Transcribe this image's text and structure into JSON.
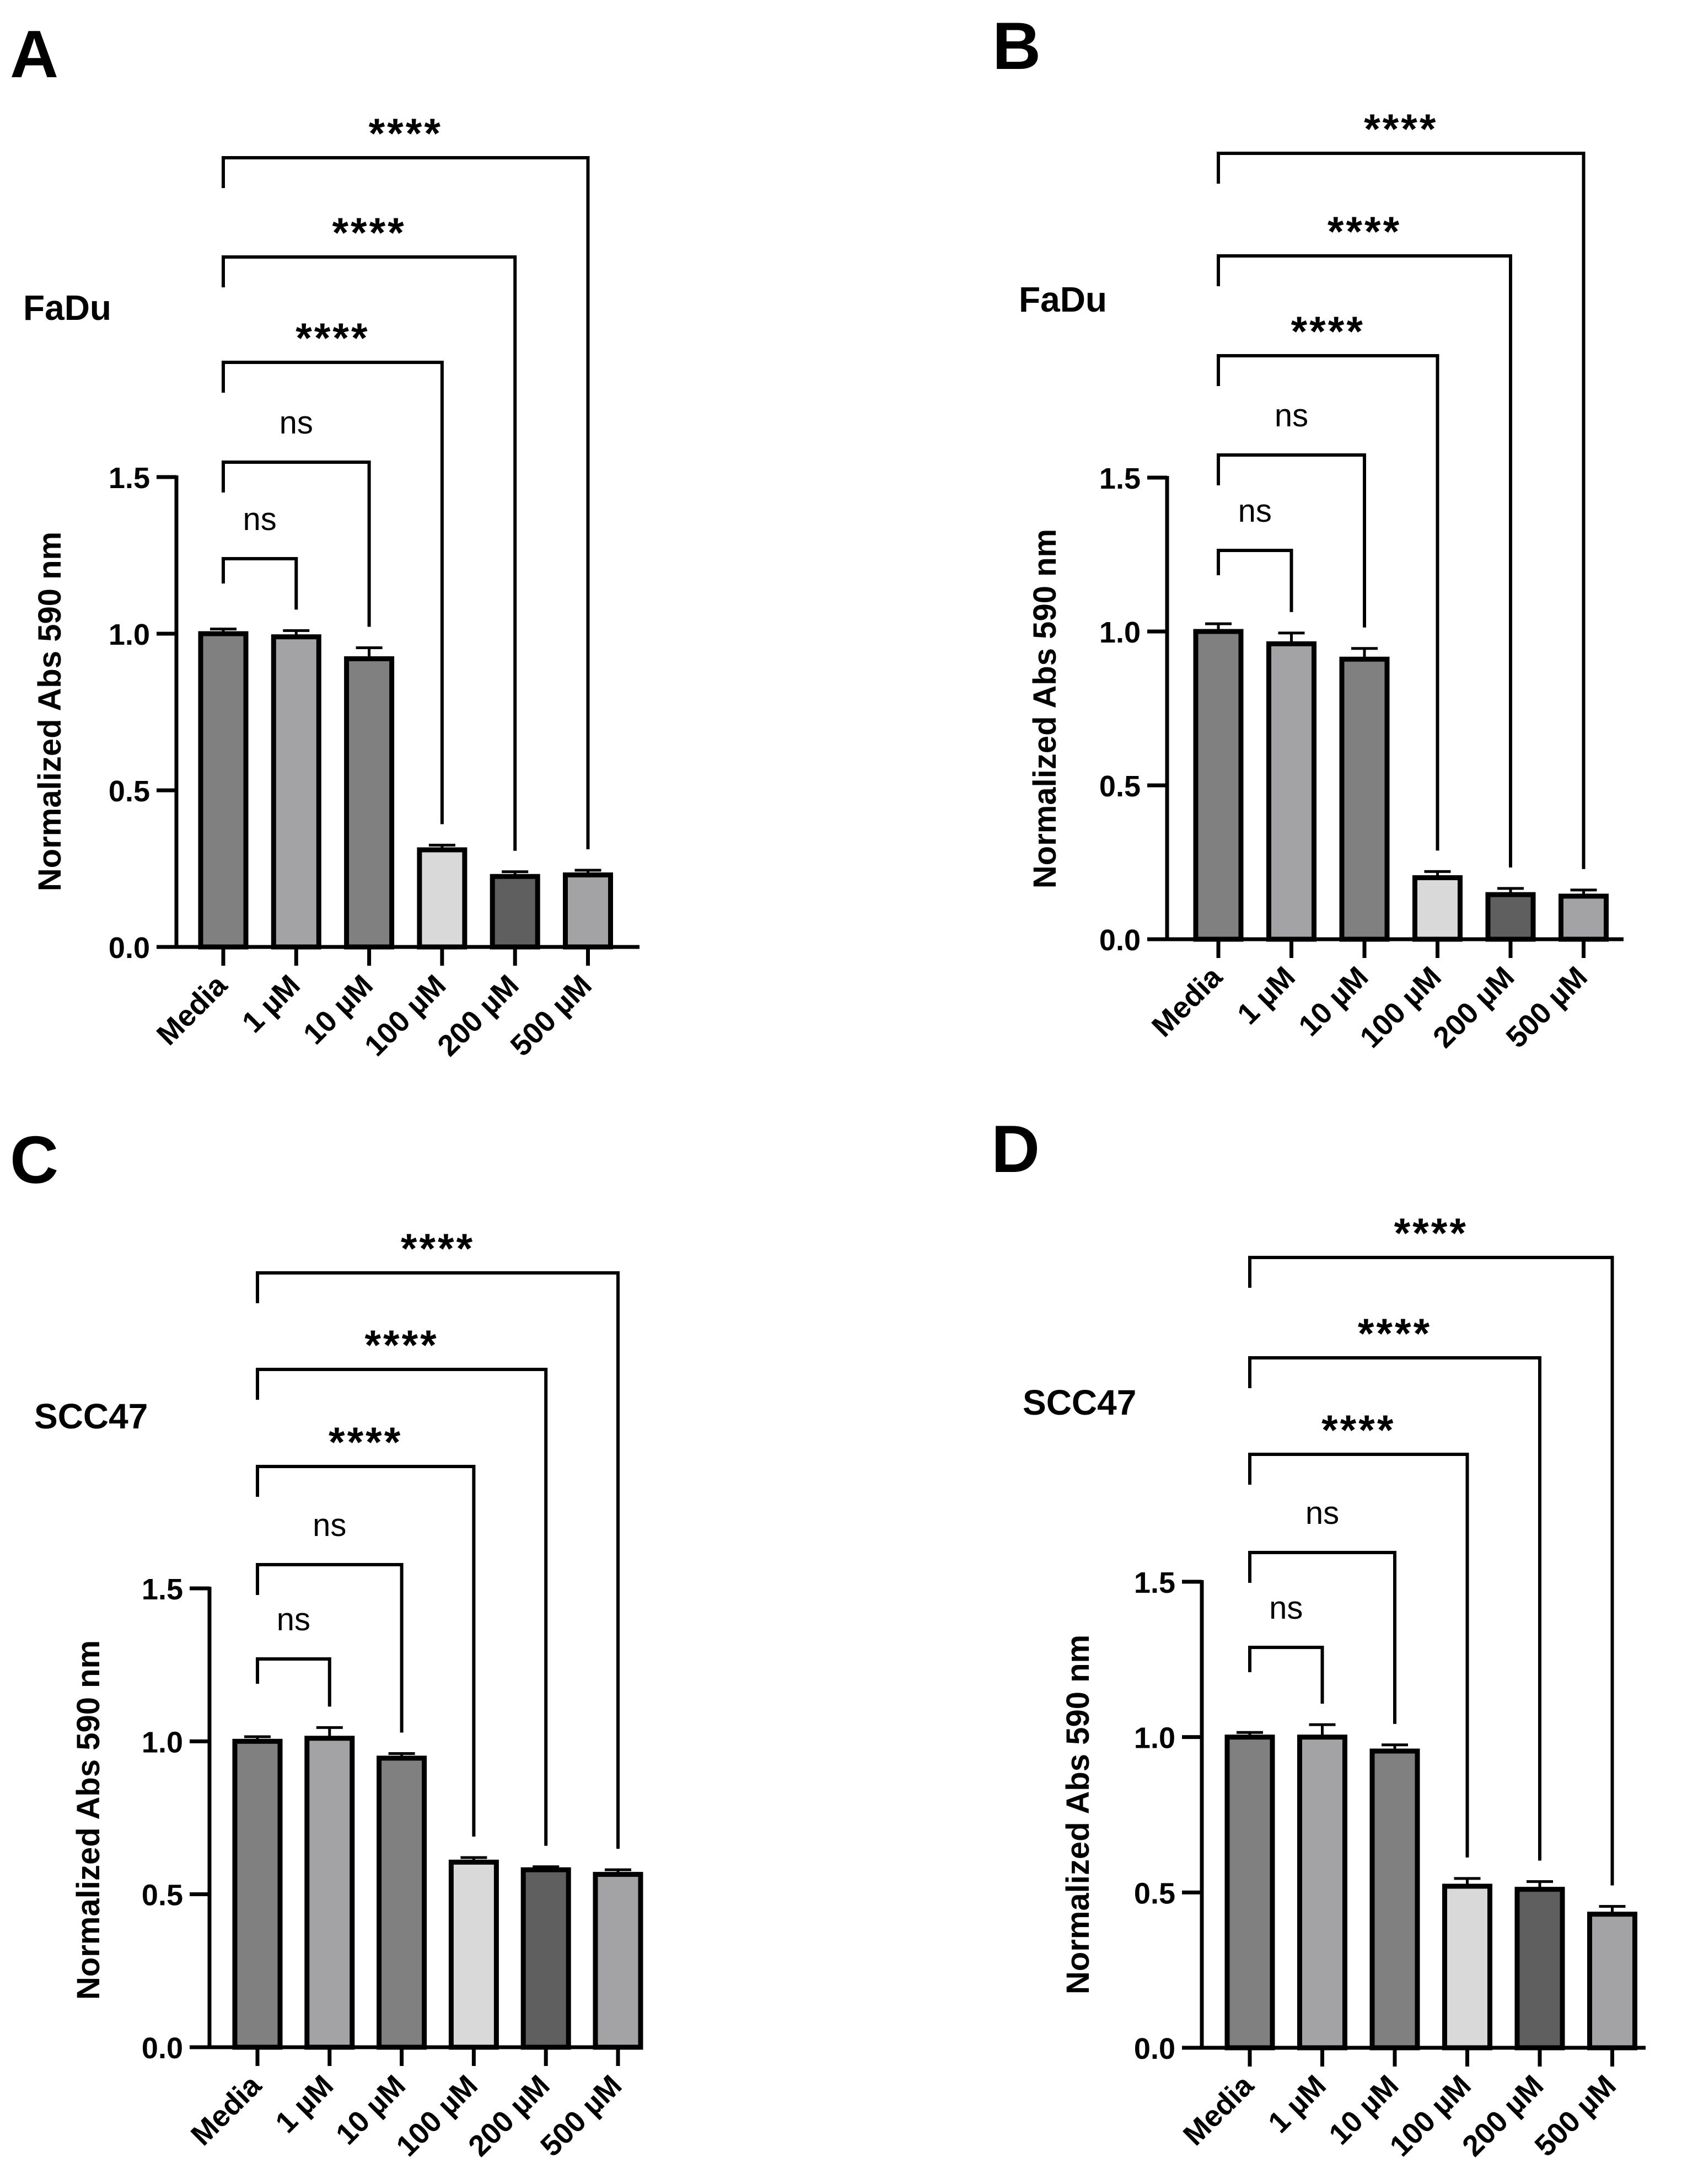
{
  "figure": {
    "colors": {
      "axis": "#000000",
      "bar_edge": "#000000",
      "bar_fills": [
        "#808080",
        "#a3a3a6",
        "#808080",
        "#d9d9d9",
        "#5f5f5f",
        "#a3a3a6"
      ]
    },
    "shared": {
      "categories": [
        "Media",
        "1 µM",
        "10 µM",
        "100 µM",
        "200 µM",
        "500 µM"
      ],
      "ylabel": "Normalized Abs 590 nm"
    }
  },
  "chart_data": [
    {
      "panel": "A",
      "type": "bar",
      "cell_line": "FaDu",
      "ylabel": "Normalized Abs 590 nm",
      "categories": [
        "Media",
        "1 µM",
        "10 µM",
        "100 µM",
        "200 µM",
        "500 µM"
      ],
      "values": [
        1.0,
        0.99,
        0.92,
        0.31,
        0.225,
        0.23
      ],
      "errors": [
        0.015,
        0.02,
        0.035,
        0.015,
        0.015,
        0.015
      ],
      "ylim": [
        0,
        1.5
      ],
      "yticks": [
        "0.0",
        "0.5",
        "1.0",
        "1.5"
      ],
      "significance": [
        {
          "to": "1 µM",
          "label": "ns"
        },
        {
          "to": "10 µM",
          "label": "ns"
        },
        {
          "to": "100 µM",
          "label": "****"
        },
        {
          "to": "200 µM",
          "label": "****"
        },
        {
          "to": "500 µM",
          "label": "****"
        }
      ]
    },
    {
      "panel": "B",
      "type": "bar",
      "cell_line": "FaDu",
      "ylabel": "Normalized Abs 590 nm",
      "categories": [
        "Media",
        "1 µM",
        "10 µM",
        "100 µM",
        "200 µM",
        "500 µM"
      ],
      "values": [
        1.0,
        0.96,
        0.91,
        0.2,
        0.145,
        0.14
      ],
      "errors": [
        0.025,
        0.035,
        0.035,
        0.02,
        0.02,
        0.02
      ],
      "ylim": [
        0,
        1.5
      ],
      "yticks": [
        "0.0",
        "0.5",
        "1.0",
        "1.5"
      ],
      "significance": [
        {
          "to": "1 µM",
          "label": "ns"
        },
        {
          "to": "10 µM",
          "label": "ns"
        },
        {
          "to": "100 µM",
          "label": "****"
        },
        {
          "to": "200 µM",
          "label": "****"
        },
        {
          "to": "500 µM",
          "label": "****"
        }
      ]
    },
    {
      "panel": "C",
      "type": "bar",
      "cell_line": "SCC47",
      "ylabel": "Normalized Abs 590 nm",
      "categories": [
        "Media",
        "1 µM",
        "10 µM",
        "100 µM",
        "200 µM",
        "500 µM"
      ],
      "values": [
        1.0,
        1.01,
        0.945,
        0.605,
        0.58,
        0.565
      ],
      "errors": [
        0.015,
        0.035,
        0.015,
        0.015,
        0.01,
        0.015
      ],
      "ylim": [
        0,
        1.5
      ],
      "yticks": [
        "0.0",
        "0.5",
        "1.0",
        "1.5"
      ],
      "significance": [
        {
          "to": "1 µM",
          "label": "ns"
        },
        {
          "to": "10 µM",
          "label": "ns"
        },
        {
          "to": "100 µM",
          "label": "****"
        },
        {
          "to": "200 µM",
          "label": "****"
        },
        {
          "to": "500 µM",
          "label": "****"
        }
      ]
    },
    {
      "panel": "D",
      "type": "bar",
      "cell_line": "SCC47",
      "ylabel": "Normalized Abs 590 nm",
      "categories": [
        "Media",
        "1 µM",
        "10 µM",
        "100 µM",
        "200 µM",
        "500 µM"
      ],
      "values": [
        1.0,
        1.0,
        0.955,
        0.52,
        0.51,
        0.43
      ],
      "errors": [
        0.015,
        0.04,
        0.02,
        0.025,
        0.025,
        0.025
      ],
      "ylim": [
        0,
        1.5
      ],
      "yticks": [
        "0.0",
        "0.5",
        "1.0",
        "1.5"
      ],
      "significance": [
        {
          "to": "1 µM",
          "label": "ns"
        },
        {
          "to": "10 µM",
          "label": "ns"
        },
        {
          "to": "100 µM",
          "label": "****"
        },
        {
          "to": "200 µM",
          "label": "****"
        },
        {
          "to": "500 µM",
          "label": "****"
        }
      ]
    }
  ]
}
